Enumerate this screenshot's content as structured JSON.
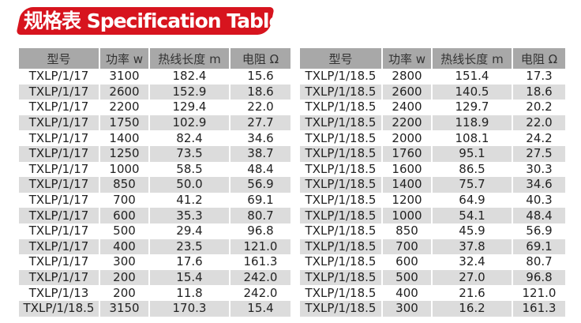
{
  "title": "规格表 Specification Table",
  "colors": {
    "banner": "#d7141e",
    "header_bg": "#a8a8a8",
    "alt_row_bg": "#dcdcdc"
  },
  "headers": [
    "型号",
    "功率 w",
    "热线长度 m",
    "电阻 Ω"
  ],
  "left_table": [
    [
      "TXLP/1/17",
      "3100",
      "182.4",
      "15.6"
    ],
    [
      "TXLP/1/17",
      "2600",
      "152.9",
      "18.6"
    ],
    [
      "TXLP/1/17",
      "2200",
      "129.4",
      "22.0"
    ],
    [
      "TXLP/1/17",
      "1750",
      "102.9",
      "27.7"
    ],
    [
      "TXLP/1/17",
      "1400",
      "82.4",
      "34.6"
    ],
    [
      "TXLP/1/17",
      "1250",
      "73.5",
      "38.7"
    ],
    [
      "TXLP/1/17",
      "1000",
      "58.5",
      "48.4"
    ],
    [
      "TXLP/1/17",
      "850",
      "50.0",
      "56.9"
    ],
    [
      "TXLP/1/17",
      "700",
      "41.2",
      "69.1"
    ],
    [
      "TXLP/1/17",
      "600",
      "35.3",
      "80.7"
    ],
    [
      "TXLP/1/17",
      "500",
      "29.4",
      "96.8"
    ],
    [
      "TXLP/1/17",
      "400",
      "23.5",
      "121.0"
    ],
    [
      "TXLP/1/17",
      "300",
      "17.6",
      "161.3"
    ],
    [
      "TXLP/1/17",
      "200",
      "15.4",
      "242.0"
    ],
    [
      "TXLP/1/13",
      "200",
      "11.8",
      "242.0"
    ],
    [
      "TXLP/1/18.5",
      "3150",
      "170.3",
      "15.4"
    ]
  ],
  "right_table": [
    [
      "TXLP/1/18.5",
      "2800",
      "151.4",
      "17.3"
    ],
    [
      "TXLP/1/18.5",
      "2600",
      "140.5",
      "18.6"
    ],
    [
      "TXLP/1/18.5",
      "2400",
      "129.7",
      "20.2"
    ],
    [
      "TXLP/1/18.5",
      "2200",
      "118.9",
      "22.0"
    ],
    [
      "TXLP/1/18.5",
      "2000",
      "108.1",
      "24.2"
    ],
    [
      "TXLP/1/18.5",
      "1760",
      "95.1",
      "27.5"
    ],
    [
      "TXLP/1/18.5",
      "1600",
      "86.5",
      "30.3"
    ],
    [
      "TXLP/1/18.5",
      "1400",
      "75.7",
      "34.6"
    ],
    [
      "TXLP/1/18.5",
      "1200",
      "64.9",
      "40.3"
    ],
    [
      "TXLP/1/18.5",
      "1000",
      "54.1",
      "48.4"
    ],
    [
      "TXLP/1/18.5",
      "850",
      "45.9",
      "56.9"
    ],
    [
      "TXLP/1/18.5",
      "700",
      "37.8",
      "69.1"
    ],
    [
      "TXLP/1/18.5",
      "600",
      "32.4",
      "80.7"
    ],
    [
      "TXLP/1/18.5",
      "500",
      "27.0",
      "96.8"
    ],
    [
      "TXLP/1/18.5",
      "400",
      "21.6",
      "121.0"
    ],
    [
      "TXLP/1/18.5",
      "300",
      "16.2",
      "161.3"
    ]
  ]
}
